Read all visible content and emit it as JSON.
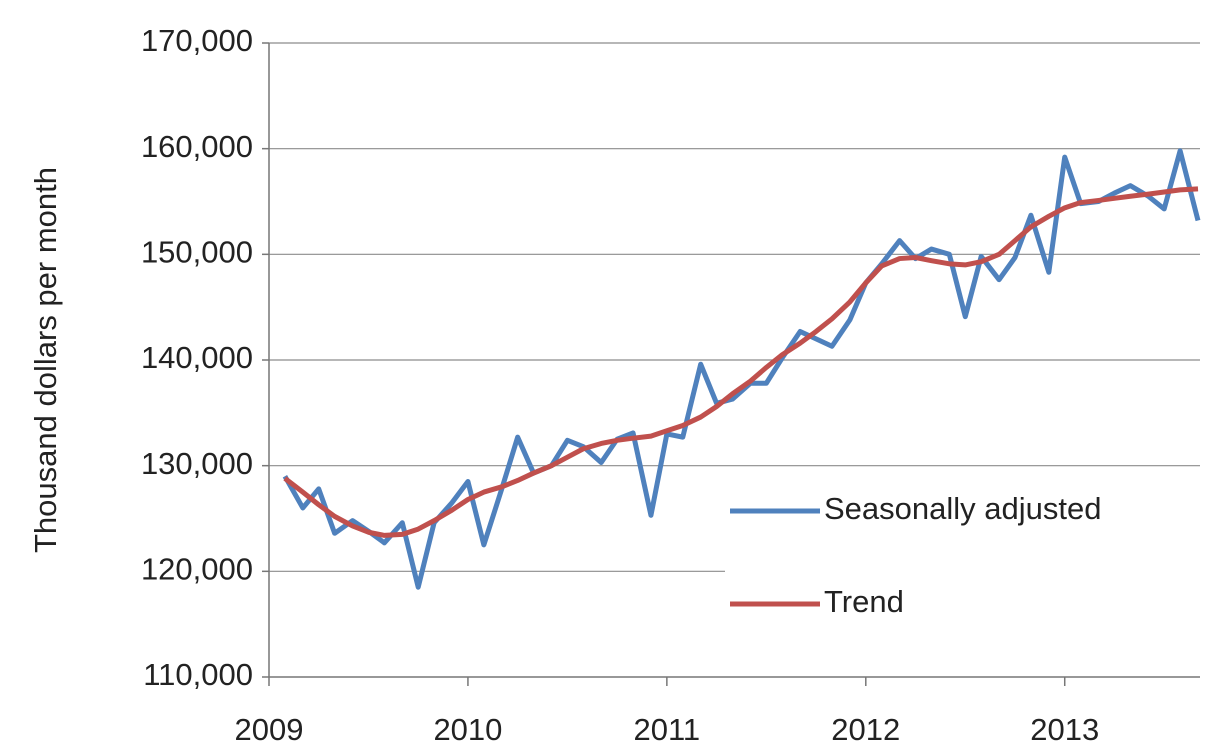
{
  "chart_data": {
    "type": "line",
    "y_label": "Thousand dollars per month",
    "x": [
      2009.08,
      2009.17,
      2009.25,
      2009.33,
      2009.42,
      2009.5,
      2009.58,
      2009.67,
      2009.75,
      2009.83,
      2009.92,
      2010,
      2010.08,
      2010.17,
      2010.25,
      2010.33,
      2010.42,
      2010.5,
      2010.58,
      2010.67,
      2010.75,
      2010.83,
      2010.92,
      2011,
      2011.08,
      2011.17,
      2011.25,
      2011.33,
      2011.42,
      2011.5,
      2011.58,
      2011.67,
      2011.75,
      2011.83,
      2011.92,
      2012,
      2012.08,
      2012.17,
      2012.25,
      2012.33,
      2012.42,
      2012.5,
      2012.58,
      2012.67,
      2012.75,
      2012.83,
      2012.92,
      2013,
      2013.08,
      2013.17,
      2013.25,
      2013.33,
      2013.42,
      2013.5,
      2013.58,
      2013.67
    ],
    "series": [
      {
        "name": "Seasonally adjusted",
        "color": "#4f81bd",
        "values": [
          129000,
          126000,
          127800,
          123600,
          124800,
          123800,
          122700,
          124600,
          118500,
          124600,
          126500,
          128500,
          122500,
          127800,
          132700,
          129300,
          130000,
          132400,
          131800,
          130300,
          132500,
          133100,
          125300,
          133000,
          132700,
          139600,
          135900,
          136300,
          137800,
          137800,
          140200,
          142700,
          142000,
          141300,
          143800,
          147300,
          149100,
          151300,
          149600,
          150500,
          150000,
          144100,
          149800,
          147600,
          149700,
          153700,
          148300,
          159200,
          154800,
          155000,
          155800,
          156500,
          155500,
          154300,
          159800,
          153200
        ]
      },
      {
        "name": "Trend",
        "color": "#c0504d",
        "values": [
          128800,
          127500,
          126300,
          125200,
          124300,
          123700,
          123400,
          123500,
          124000,
          124800,
          125800,
          126800,
          127500,
          128000,
          128600,
          129300,
          130000,
          130800,
          131600,
          132100,
          132400,
          132600,
          132800,
          133300,
          133800,
          134600,
          135600,
          136800,
          138000,
          139300,
          140500,
          141600,
          142700,
          143900,
          145500,
          147300,
          148900,
          149600,
          149700,
          149400,
          149100,
          149000,
          149300,
          150000,
          151300,
          152600,
          153600,
          154400,
          154900,
          155100,
          155300,
          155500,
          155700,
          155900,
          156100,
          156200
        ]
      }
    ],
    "xlim": [
      2009,
      2013.68
    ],
    "xticks": [
      2009,
      2010,
      2011,
      2012,
      2013
    ],
    "ylim": [
      110000,
      170000
    ],
    "yticks": [
      {
        "value": 110000,
        "label": "110,000"
      },
      {
        "value": 120000,
        "label": "120,000"
      },
      {
        "value": 130000,
        "label": "130,000"
      },
      {
        "value": 140000,
        "label": "140,000"
      },
      {
        "value": 150000,
        "label": "150,000"
      },
      {
        "value": 160000,
        "label": "160,000"
      },
      {
        "value": 170000,
        "label": "170,000"
      }
    ],
    "grid": true,
    "legend": "lower right"
  }
}
